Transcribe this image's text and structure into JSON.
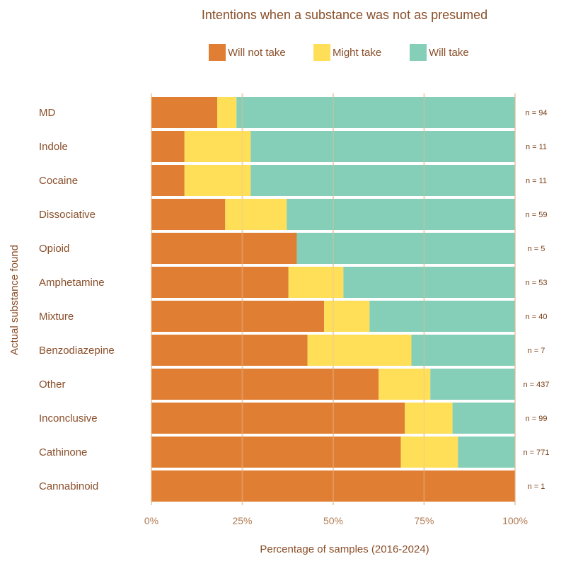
{
  "chart_data": {
    "type": "bar",
    "orientation": "horizontal",
    "stacked": true,
    "title": "Intentions when a substance was not as presumed",
    "xlabel": "Percentage of samples (2016-2024)",
    "ylabel": "Actual substance found",
    "xlim": [
      0,
      100
    ],
    "x_ticks": [
      "0%",
      "25%",
      "50%",
      "75%",
      "100%"
    ],
    "legend_position": "top",
    "grid": "vertical",
    "categories": [
      "MD",
      "Indole",
      "Cocaine",
      "Dissociative",
      "Opioid",
      "Amphetamine",
      "Mixture",
      "Benzodiazepine",
      "Other",
      "Inconclusive",
      "Cathinone",
      "Cannabinoid"
    ],
    "n_labels": [
      "n = 94",
      "n = 11",
      "n = 11",
      "n = 59",
      "n = 5",
      "n = 53",
      "n = 40",
      "n = 7",
      "n = 437",
      "n = 99",
      "n = 771",
      "n = 1"
    ],
    "series": [
      {
        "name": "Will not take",
        "color": "#e07f34",
        "values": [
          18.1,
          9.1,
          9.1,
          20.3,
          40.0,
          37.7,
          47.5,
          42.9,
          62.5,
          69.7,
          68.6,
          100.0
        ]
      },
      {
        "name": "Might take",
        "color": "#ffdf57",
        "values": [
          5.3,
          18.2,
          18.2,
          16.9,
          0.0,
          15.1,
          12.5,
          28.6,
          14.2,
          13.1,
          15.7,
          0.0
        ]
      },
      {
        "name": "Will take",
        "color": "#85ceb7",
        "values": [
          76.6,
          72.7,
          72.7,
          62.8,
          60.0,
          47.2,
          40.0,
          28.5,
          23.3,
          17.2,
          15.7,
          0.0
        ]
      }
    ]
  }
}
